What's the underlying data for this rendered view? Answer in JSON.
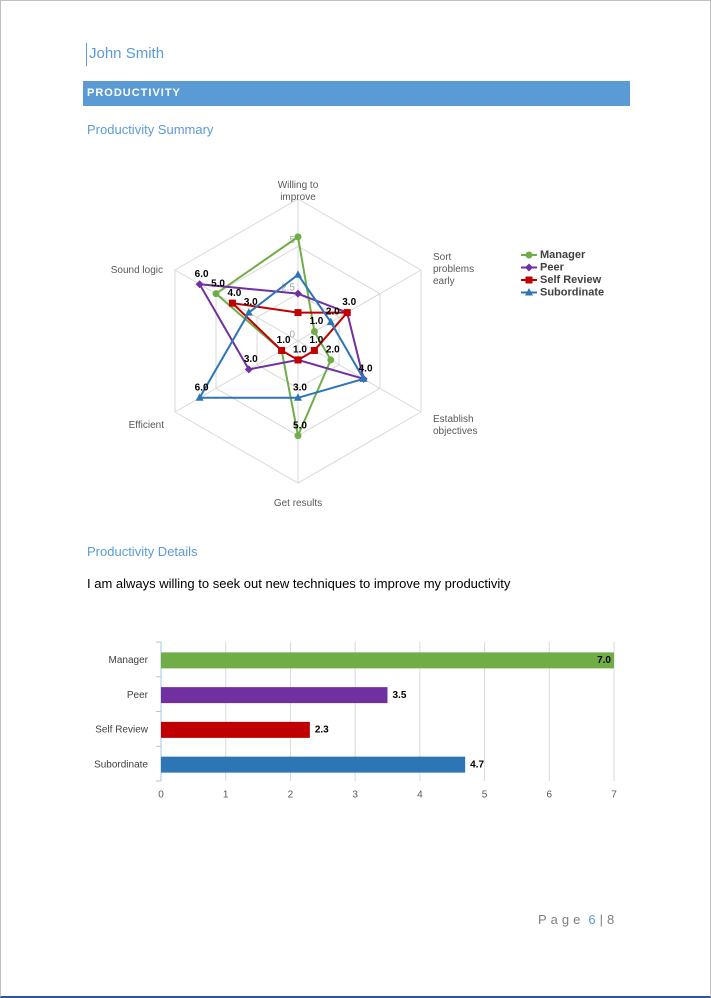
{
  "header": {
    "name": "John Smith"
  },
  "section": {
    "title": "PRODUCTIVITY"
  },
  "summary": {
    "heading": "Productivity Summary"
  },
  "details": {
    "heading": "Productivity Details",
    "question": "I am always willing to seek out new techniques to improve my productivity"
  },
  "footer": {
    "label": "Page",
    "page": 6,
    "separator": "|",
    "total": 8
  },
  "chart_data": [
    {
      "type": "radar",
      "categories": [
        "Willing to improve",
        "Sort problems early",
        "Establish objectives",
        "Get results",
        "Efficient",
        "Sound logic"
      ],
      "rlim": [
        0,
        7.5
      ],
      "rticks": [
        0,
        2.5,
        5
      ],
      "grid": true,
      "legend": "right",
      "series": [
        {
          "name": "Manager",
          "color": "#70ad47",
          "marker": "circle",
          "values": [
            5.5,
            1.0,
            2.0,
            5.0,
            1.0,
            5.0
          ],
          "value_labels": [
            null,
            "1.0",
            "2.0",
            "5.0",
            null,
            "5.0"
          ]
        },
        {
          "name": "Peer",
          "color": "#7030a0",
          "marker": "diamond",
          "values": [
            2.5,
            3.0,
            4.0,
            1.0,
            3.0,
            6.0
          ],
          "value_labels": [
            null,
            null,
            null,
            null,
            "3.0",
            "6.0"
          ]
        },
        {
          "name": "Self Review",
          "color": "#c00000",
          "marker": "square",
          "values": [
            1.5,
            3.0,
            1.0,
            1.0,
            1.0,
            4.0
          ],
          "value_labels": [
            null,
            "3.0",
            "1.0",
            "1.0",
            "1.0",
            "4.0"
          ]
        },
        {
          "name": "Subordinate",
          "color": "#2e75b6",
          "marker": "triangle",
          "values": [
            3.5,
            2.0,
            4.0,
            3.0,
            6.0,
            3.0
          ],
          "value_labels": [
            null,
            "2.0",
            "4.0",
            "3.0",
            "6.0",
            "3.0"
          ]
        }
      ]
    },
    {
      "type": "hbar",
      "categories": [
        "Manager",
        "Peer",
        "Self Review",
        "Subordinate"
      ],
      "values": [
        7.0,
        3.5,
        2.3,
        4.7
      ],
      "value_labels": [
        "7.0",
        "3.5",
        "2.3",
        "4.7"
      ],
      "colors": [
        "#70ad47",
        "#7030a0",
        "#c00000",
        "#2e75b6"
      ],
      "xlim": [
        0,
        7
      ],
      "xticks": [
        0,
        1,
        2,
        3,
        4,
        5,
        6,
        7
      ],
      "grid": true
    }
  ]
}
